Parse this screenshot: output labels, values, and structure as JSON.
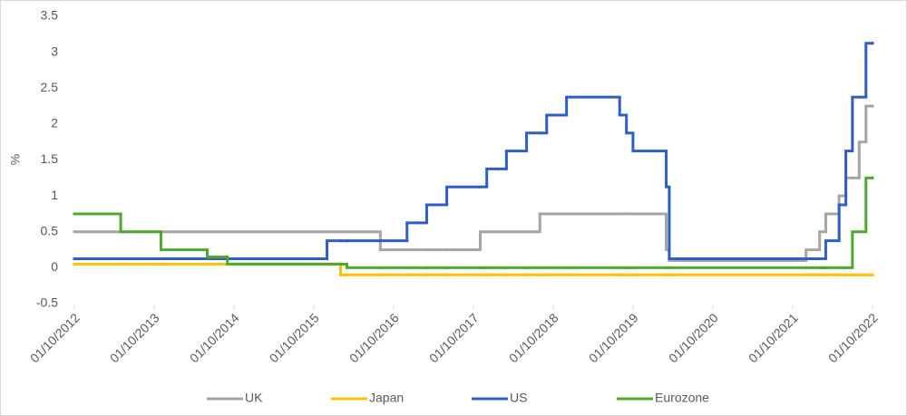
{
  "chart_data": {
    "type": "step-line",
    "y_label": "%",
    "x": [
      "01/10/2012",
      "01/05/2013",
      "01/11/2013",
      "01/06/2014",
      "01/09/2014",
      "01/12/2015",
      "01/02/2016",
      "01/03/2016",
      "01/08/2016",
      "01/12/2016",
      "01/03/2017",
      "01/06/2017",
      "01/11/2017",
      "01/12/2017",
      "01/03/2018",
      "01/06/2018",
      "01/08/2018",
      "01/09/2018",
      "01/12/2018",
      "01/08/2019",
      "01/09/2019",
      "01/10/2019",
      "01/03/2020",
      "15/03/2020",
      "01/12/2021",
      "01/02/2022",
      "01/03/2022",
      "01/05/2022",
      "01/06/2022",
      "01/07/2022",
      "01/08/2022",
      "01/09/2022",
      "01/10/2022"
    ],
    "series": [
      {
        "name": "UK",
        "color": "#a5a5a5",
        "values": [
          0.5,
          0.5,
          0.5,
          0.5,
          0.5,
          0.5,
          0.5,
          0.5,
          0.25,
          0.25,
          0.25,
          0.25,
          0.5,
          0.5,
          0.5,
          0.5,
          0.75,
          0.75,
          0.75,
          0.75,
          0.75,
          0.75,
          0.25,
          0.1,
          0.25,
          0.5,
          0.75,
          1,
          1.25,
          1.25,
          1.75,
          2.25,
          2.25
        ]
      },
      {
        "name": "Japan",
        "color": "#ffc000",
        "values": [
          0.05,
          0.05,
          0.05,
          0.05,
          0.05,
          0.05,
          -0.1,
          -0.1,
          -0.1,
          -0.1,
          -0.1,
          -0.1,
          -0.1,
          -0.1,
          -0.1,
          -0.1,
          -0.1,
          -0.1,
          -0.1,
          -0.1,
          -0.1,
          -0.1,
          -0.1,
          -0.1,
          -0.1,
          -0.1,
          -0.1,
          -0.1,
          -0.1,
          -0.1,
          -0.1,
          -0.1,
          -0.1
        ]
      },
      {
        "name": "US",
        "color": "#2f5fc4",
        "values": [
          0.125,
          0.125,
          0.125,
          0.125,
          0.125,
          0.375,
          0.375,
          0.375,
          0.375,
          0.625,
          0.875,
          1.125,
          1.125,
          1.375,
          1.625,
          1.875,
          1.875,
          2.125,
          2.375,
          2.125,
          1.875,
          1.625,
          1.125,
          0.125,
          0.125,
          0.125,
          0.375,
          0.875,
          1.625,
          2.375,
          2.375,
          3.125,
          3.125
        ]
      },
      {
        "name": "Eurozone",
        "color": "#4ea72e",
        "values": [
          0.75,
          0.5,
          0.25,
          0.15,
          0.05,
          0.05,
          0.05,
          0,
          0,
          0,
          0,
          0,
          0,
          0,
          0,
          0,
          0,
          0,
          0,
          0,
          0,
          0,
          0,
          0,
          0,
          0,
          0,
          0,
          0,
          0.5,
          0.5,
          1.25,
          1.25
        ]
      }
    ],
    "xlim": [
      "01/10/2012",
      "01/10/2022"
    ],
    "xticks": [
      "01/10/2012",
      "01/10/2013",
      "01/10/2014",
      "01/10/2015",
      "01/10/2016",
      "01/10/2017",
      "01/10/2018",
      "01/10/2019",
      "01/10/2020",
      "01/10/2021",
      "01/10/2022"
    ],
    "ylim": [
      -0.5,
      3.5
    ],
    "yticks": [
      -0.5,
      0,
      0.5,
      1,
      1.5,
      2,
      2.5,
      3,
      3.5
    ],
    "grid": false,
    "legend": "bottom"
  }
}
